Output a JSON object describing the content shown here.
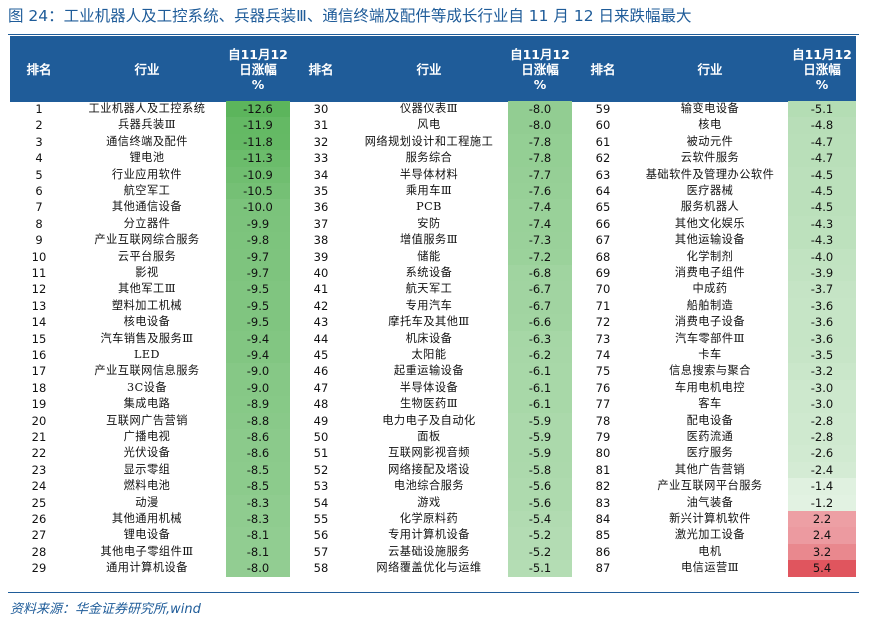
{
  "title": "图 24：工业机器人及工控系统、兵器兵装Ⅲ、通信终端及配件等成长行业自 11 月 12 日来跌幅最大",
  "headers": {
    "rank": "排名",
    "industry": "行业",
    "change_line1": "自11月12",
    "change_line2": "日涨幅",
    "change_line3": "%"
  },
  "colors": {
    "header_bg": "#1f5c99",
    "negative_strong": "#5cb55c",
    "positive_strong": "#e0555e"
  },
  "rows": [
    {
      "rank": "1",
      "name": "工业机器人及工控系统",
      "value": -12.6
    },
    {
      "rank": "2",
      "name": "兵器兵装Ⅲ",
      "value": -11.9
    },
    {
      "rank": "3",
      "name": "通信终端及配件",
      "value": -11.8
    },
    {
      "rank": "4",
      "name": "锂电池",
      "value": -11.3
    },
    {
      "rank": "5",
      "name": "行业应用软件",
      "value": -10.9
    },
    {
      "rank": "6",
      "name": "航空军工",
      "value": -10.5
    },
    {
      "rank": "7",
      "name": "其他通信设备",
      "value": -10.0
    },
    {
      "rank": "8",
      "name": "分立器件",
      "value": -9.9
    },
    {
      "rank": "9",
      "name": "产业互联网综合服务",
      "value": -9.8
    },
    {
      "rank": "10",
      "name": "云平台服务",
      "value": -9.7
    },
    {
      "rank": "11",
      "name": "影视",
      "value": -9.7
    },
    {
      "rank": "12",
      "name": "其他军工Ⅲ",
      "value": -9.5
    },
    {
      "rank": "13",
      "name": "塑料加工机械",
      "value": -9.5
    },
    {
      "rank": "14",
      "name": "核电设备",
      "value": -9.5
    },
    {
      "rank": "15",
      "name": "汽车销售及服务Ⅲ",
      "value": -9.4
    },
    {
      "rank": "16",
      "name": "LED",
      "value": -9.4
    },
    {
      "rank": "17",
      "name": "产业互联网信息服务",
      "value": -9.0
    },
    {
      "rank": "18",
      "name": "3C设备",
      "value": -9.0
    },
    {
      "rank": "19",
      "name": "集成电路",
      "value": -8.9
    },
    {
      "rank": "20",
      "name": "互联网广告营销",
      "value": -8.8
    },
    {
      "rank": "21",
      "name": "广播电视",
      "value": -8.6
    },
    {
      "rank": "22",
      "name": "光伏设备",
      "value": -8.6
    },
    {
      "rank": "23",
      "name": "显示零组",
      "value": -8.5
    },
    {
      "rank": "24",
      "name": "燃料电池",
      "value": -8.5
    },
    {
      "rank": "25",
      "name": "动漫",
      "value": -8.3
    },
    {
      "rank": "26",
      "name": "其他通用机械",
      "value": -8.3
    },
    {
      "rank": "27",
      "name": "锂电设备",
      "value": -8.1
    },
    {
      "rank": "28",
      "name": "其他电子零组件Ⅲ",
      "value": -8.1
    },
    {
      "rank": "29",
      "name": "通用计算机设备",
      "value": -8.0
    },
    {
      "rank": "30",
      "name": "仪器仪表Ⅲ",
      "value": -8.0
    },
    {
      "rank": "31",
      "name": "风电",
      "value": -8.0
    },
    {
      "rank": "32",
      "name": "网络规划设计和工程施工",
      "value": -7.8
    },
    {
      "rank": "33",
      "name": "服务综合",
      "value": -7.8
    },
    {
      "rank": "34",
      "name": "半导体材料",
      "value": -7.7
    },
    {
      "rank": "35",
      "name": "乘用车Ⅲ",
      "value": -7.6
    },
    {
      "rank": "36",
      "name": "PCB",
      "value": -7.4
    },
    {
      "rank": "37",
      "name": "安防",
      "value": -7.4
    },
    {
      "rank": "38",
      "name": "增值服务Ⅲ",
      "value": -7.3
    },
    {
      "rank": "39",
      "name": "储能",
      "value": -7.2
    },
    {
      "rank": "40",
      "name": "系统设备",
      "value": -6.8
    },
    {
      "rank": "41",
      "name": "航天军工",
      "value": -6.7
    },
    {
      "rank": "42",
      "name": "专用汽车",
      "value": -6.7
    },
    {
      "rank": "43",
      "name": "摩托车及其他Ⅲ",
      "value": -6.6
    },
    {
      "rank": "44",
      "name": "机床设备",
      "value": -6.3
    },
    {
      "rank": "45",
      "name": "太阳能",
      "value": -6.2
    },
    {
      "rank": "46",
      "name": "起重运输设备",
      "value": -6.1
    },
    {
      "rank": "47",
      "name": "半导体设备",
      "value": -6.1
    },
    {
      "rank": "48",
      "name": "生物医药Ⅲ",
      "value": -6.1
    },
    {
      "rank": "49",
      "name": "电力电子及自动化",
      "value": -5.9
    },
    {
      "rank": "50",
      "name": "面板",
      "value": -5.9
    },
    {
      "rank": "51",
      "name": "互联网影视音频",
      "value": -5.9
    },
    {
      "rank": "52",
      "name": "网络接配及塔设",
      "value": -5.8
    },
    {
      "rank": "53",
      "name": "电池综合服务",
      "value": -5.6
    },
    {
      "rank": "54",
      "name": "游戏",
      "value": -5.6
    },
    {
      "rank": "55",
      "name": "化学原料药",
      "value": -5.4
    },
    {
      "rank": "56",
      "name": "专用计算机设备",
      "value": -5.2
    },
    {
      "rank": "57",
      "name": "云基础设施服务",
      "value": -5.2
    },
    {
      "rank": "58",
      "name": "网络覆盖优化与运维",
      "value": -5.1
    },
    {
      "rank": "59",
      "name": "输变电设备",
      "value": -5.1
    },
    {
      "rank": "60",
      "name": "核电",
      "value": -4.8
    },
    {
      "rank": "61",
      "name": "被动元件",
      "value": -4.7
    },
    {
      "rank": "62",
      "name": "云软件服务",
      "value": -4.7
    },
    {
      "rank": "63",
      "name": "基础软件及管理办公软件",
      "value": -4.5
    },
    {
      "rank": "64",
      "name": "医疗器械",
      "value": -4.5
    },
    {
      "rank": "65",
      "name": "服务机器人",
      "value": -4.5
    },
    {
      "rank": "66",
      "name": "其他文化娱乐",
      "value": -4.3
    },
    {
      "rank": "67",
      "name": "其他运输设备",
      "value": -4.3
    },
    {
      "rank": "68",
      "name": "化学制剂",
      "value": -4.0
    },
    {
      "rank": "69",
      "name": "消费电子组件",
      "value": -3.9
    },
    {
      "rank": "70",
      "name": "中成药",
      "value": -3.7
    },
    {
      "rank": "71",
      "name": "船舶制造",
      "value": -3.6
    },
    {
      "rank": "72",
      "name": "消费电子设备",
      "value": -3.6
    },
    {
      "rank": "73",
      "name": "汽车零部件Ⅲ",
      "value": -3.6
    },
    {
      "rank": "74",
      "name": "卡车",
      "value": -3.5
    },
    {
      "rank": "75",
      "name": "信息搜索与聚合",
      "value": -3.2
    },
    {
      "rank": "76",
      "name": "车用电机电控",
      "value": -3.0
    },
    {
      "rank": "77",
      "name": "客车",
      "value": -3.0
    },
    {
      "rank": "78",
      "name": "配电设备",
      "value": -2.8
    },
    {
      "rank": "79",
      "name": "医药流通",
      "value": -2.8
    },
    {
      "rank": "80",
      "name": "医疗服务",
      "value": -2.6
    },
    {
      "rank": "81",
      "name": "其他广告营销",
      "value": -2.4
    },
    {
      "rank": "82",
      "name": "产业互联网平台服务",
      "value": -1.4
    },
    {
      "rank": "83",
      "name": "油气装备",
      "value": -1.2
    },
    {
      "rank": "84",
      "name": "新兴计算机软件",
      "value": 2.2
    },
    {
      "rank": "85",
      "name": "激光加工设备",
      "value": 2.4
    },
    {
      "rank": "86",
      "name": "电机",
      "value": 3.2
    },
    {
      "rank": "87",
      "name": "电信运营Ⅲ",
      "value": 5.4
    }
  ],
  "footer": "资料来源：华金证券研究所,wind"
}
